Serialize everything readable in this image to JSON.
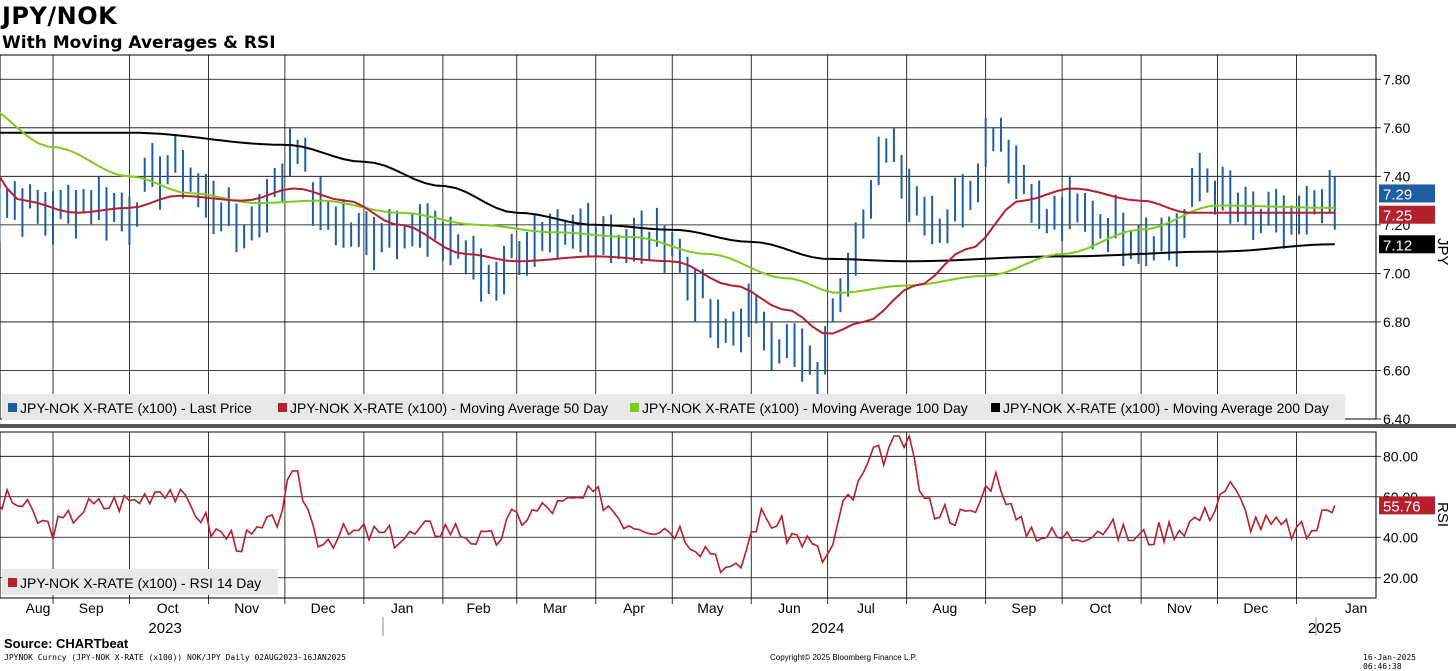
{
  "header": {
    "title": "JPY/NOK",
    "subtitle": "With Moving Averages & RSI"
  },
  "footer": {
    "source": "Source: CHARTbeat",
    "ticker_info": "JPYNOK Curncy (JPY-NOK X-RATE  (x100)) NOK/JPY  Daily 02AUG2023-16JAN2025",
    "copyright": "Copyright© 2025 Bloomberg Finance L.P.",
    "timestamp": "16-Jan-2025 06:46:38"
  },
  "colors": {
    "price": "#1f5da0",
    "ma50": "#b5202e",
    "ma100": "#7ccc1e",
    "ma200": "#000000",
    "rsi": "#b5202e"
  },
  "chart_data": [
    {
      "type": "line",
      "title": "JPY/NOK",
      "subtitle": "With Moving Averages & RSI",
      "ylabel": "JPY",
      "ylim": [
        6.4,
        7.9
      ],
      "y_ticks": [
        "7.80",
        "7.60",
        "7.40",
        "7.20",
        "7.00",
        "6.80",
        "6.60",
        "6.40"
      ],
      "x_months": [
        "Aug",
        "Sep",
        "Oct",
        "Nov",
        "Dec",
        "Jan",
        "Feb",
        "Mar",
        "Apr",
        "May",
        "Jun",
        "Jul",
        "Aug",
        "Sep",
        "Oct",
        "Nov",
        "Dec",
        "Jan"
      ],
      "x_years": [
        "2023",
        "2024",
        "2025"
      ],
      "legend_placement": "bottom-left",
      "grid": true,
      "value_labels": {
        "last_price": "7.29",
        "ma50": "7.25",
        "ma200": "7.12"
      },
      "series": [
        {
          "name": "JPY-NOK X-RATE (x100) - Last Price",
          "style": "ohlc-bars",
          "x": [
            "2023-08-02",
            "2023-08-16",
            "2023-09-01",
            "2023-09-15",
            "2023-10-01",
            "2023-10-10",
            "2023-10-20",
            "2023-11-01",
            "2023-11-15",
            "2023-11-28",
            "2023-12-05",
            "2023-12-15",
            "2024-01-01",
            "2024-01-15",
            "2024-02-01",
            "2024-02-20",
            "2024-03-01",
            "2024-03-15",
            "2024-04-01",
            "2024-04-15",
            "2024-04-29",
            "2024-05-10",
            "2024-05-20",
            "2024-06-01",
            "2024-06-15",
            "2024-06-28",
            "2024-07-05",
            "2024-07-15",
            "2024-07-25",
            "2024-08-05",
            "2024-08-15",
            "2024-08-25",
            "2024-09-05",
            "2024-09-15",
            "2024-09-25",
            "2024-10-05",
            "2024-10-20",
            "2024-11-01",
            "2024-11-15",
            "2024-11-25",
            "2024-12-05",
            "2024-12-15",
            "2025-01-01",
            "2025-01-16"
          ],
          "values": [
            7.18,
            7.3,
            7.25,
            7.3,
            7.25,
            7.4,
            7.45,
            7.3,
            7.18,
            7.35,
            7.55,
            7.25,
            7.15,
            7.2,
            7.15,
            6.98,
            7.1,
            7.12,
            7.18,
            7.12,
            7.15,
            6.95,
            6.75,
            6.82,
            6.7,
            6.58,
            6.95,
            7.2,
            7.55,
            7.3,
            7.2,
            7.35,
            7.6,
            7.4,
            7.22,
            7.25,
            7.2,
            7.15,
            7.15,
            7.4,
            7.3,
            7.22,
            7.22,
            7.29
          ]
        },
        {
          "name": "JPY-NOK X-RATE (x100) - Moving Average 50 Day",
          "x": [
            "2023-08-02",
            "2023-08-20",
            "2023-09-10",
            "2023-10-01",
            "2023-10-20",
            "2023-11-15",
            "2023-12-05",
            "2023-12-25",
            "2024-01-15",
            "2024-02-10",
            "2024-03-01",
            "2024-04-01",
            "2024-05-01",
            "2024-05-25",
            "2024-06-15",
            "2024-07-01",
            "2024-07-15",
            "2024-08-05",
            "2024-08-25",
            "2024-09-15",
            "2024-10-05",
            "2024-11-01",
            "2024-11-20",
            "2024-12-10",
            "2025-01-16"
          ],
          "values": [
            7.5,
            7.3,
            7.25,
            7.27,
            7.32,
            7.3,
            7.35,
            7.3,
            7.2,
            7.08,
            7.05,
            7.07,
            7.05,
            6.95,
            6.85,
            6.75,
            6.8,
            6.95,
            7.1,
            7.3,
            7.35,
            7.3,
            7.25,
            7.25,
            7.25
          ]
        },
        {
          "name": "JPY-NOK X-RATE (x100) - Moving Average 100 Day",
          "x": [
            "2023-08-02",
            "2023-09-01",
            "2023-10-01",
            "2023-10-25",
            "2023-11-20",
            "2023-12-15",
            "2024-01-15",
            "2024-02-15",
            "2024-03-15",
            "2024-04-15",
            "2024-05-15",
            "2024-06-15",
            "2024-07-05",
            "2024-08-01",
            "2024-09-01",
            "2024-10-01",
            "2024-11-01",
            "2024-12-01",
            "2025-01-16"
          ],
          "values": [
            7.7,
            7.52,
            7.4,
            7.33,
            7.29,
            7.3,
            7.25,
            7.2,
            7.17,
            7.15,
            7.08,
            6.98,
            6.92,
            6.95,
            6.99,
            7.08,
            7.18,
            7.28,
            7.27
          ]
        },
        {
          "name": "JPY-NOK X-RATE (x100) - Moving Average 200 Day",
          "x": [
            "2023-08-02",
            "2023-10-01",
            "2023-12-01",
            "2024-01-01",
            "2024-02-01",
            "2024-03-01",
            "2024-04-01",
            "2024-05-01",
            "2024-06-01",
            "2024-07-01",
            "2024-08-01",
            "2024-10-01",
            "2024-12-01",
            "2025-01-16"
          ],
          "values": [
            7.58,
            7.58,
            7.53,
            7.46,
            7.36,
            7.25,
            7.2,
            7.18,
            7.13,
            7.06,
            7.05,
            7.07,
            7.09,
            7.12
          ]
        }
      ]
    },
    {
      "type": "line",
      "ylabel": "RSI",
      "ylim": [
        10,
        92
      ],
      "y_ticks": [
        "80.00",
        "60.00",
        "40.00",
        "20.00"
      ],
      "legend_placement": "bottom-left",
      "value_labels": {
        "rsi": "55.76"
      },
      "series": [
        {
          "name": "JPY-NOK X-RATE (x100) - RSI 14 Day",
          "x": [
            "2023-08-02",
            "2023-08-15",
            "2023-09-01",
            "2023-09-15",
            "2023-10-01",
            "2023-10-15",
            "2023-10-25",
            "2023-11-05",
            "2023-11-15",
            "2023-11-25",
            "2023-12-05",
            "2023-12-15",
            "2024-01-01",
            "2024-01-15",
            "2024-02-01",
            "2024-02-20",
            "2024-03-01",
            "2024-03-15",
            "2024-04-01",
            "2024-04-15",
            "2024-05-01",
            "2024-05-15",
            "2024-05-25",
            "2024-06-05",
            "2024-06-20",
            "2024-06-30",
            "2024-07-10",
            "2024-07-20",
            "2024-07-31",
            "2024-08-10",
            "2024-08-25",
            "2024-09-05",
            "2024-09-15",
            "2024-10-01",
            "2024-10-15",
            "2024-11-01",
            "2024-11-15",
            "2024-11-25",
            "2024-12-05",
            "2024-12-15",
            "2024-12-25",
            "2025-01-05",
            "2025-01-16"
          ],
          "values": [
            50,
            58,
            45,
            55,
            58,
            65,
            55,
            42,
            38,
            45,
            68,
            40,
            42,
            40,
            45,
            38,
            50,
            55,
            60,
            48,
            45,
            35,
            22,
            50,
            40,
            30,
            60,
            80,
            88,
            55,
            50,
            70,
            45,
            40,
            45,
            40,
            45,
            50,
            65,
            48,
            45,
            42,
            55.76
          ]
        }
      ]
    }
  ]
}
